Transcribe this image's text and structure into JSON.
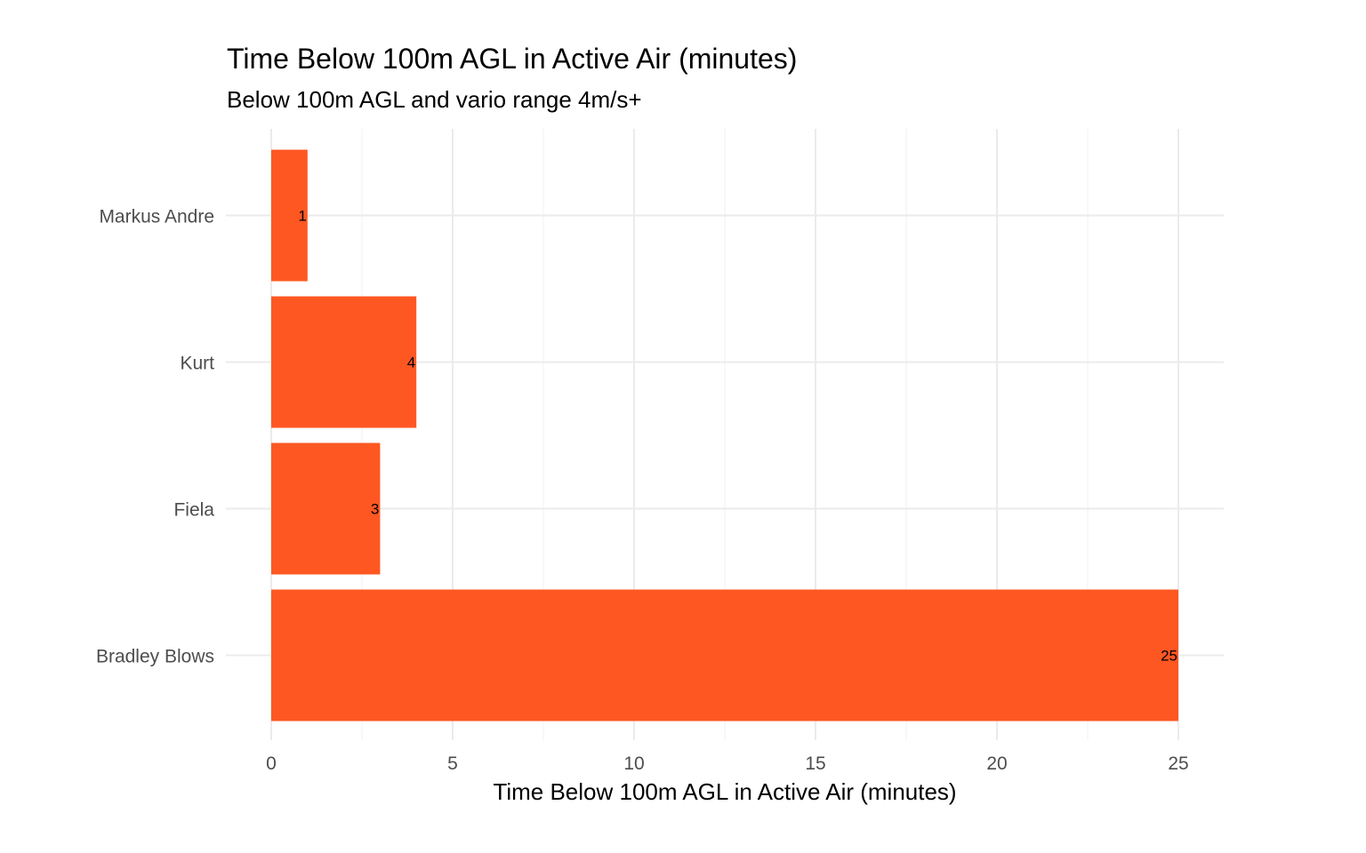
{
  "chart_data": {
    "type": "bar",
    "orientation": "horizontal",
    "title": "Time Below 100m AGL in Active Air (minutes)",
    "subtitle": "Below 100m AGL and vario range 4m/s+",
    "xlabel": "Time Below 100m AGL in Active Air (minutes)",
    "ylabel": "",
    "categories": [
      "Markus Andre",
      "Kurt",
      "Fiela",
      "Bradley Blows"
    ],
    "values": [
      1,
      4,
      3,
      25
    ],
    "data_labels": [
      "1",
      "4",
      "3",
      "25"
    ],
    "xlim": [
      0,
      26.25
    ],
    "xticks": [
      0,
      5,
      10,
      15,
      20,
      25
    ],
    "xtick_labels": [
      "0",
      "5",
      "10",
      "15",
      "20",
      "25"
    ],
    "grid": true,
    "legend": "none",
    "colors": {
      "bar": "#FF5722",
      "grid_major": "#ebebeb",
      "grid_minor": "#f2f2f2",
      "tick_text": "#4d4d4d"
    }
  }
}
